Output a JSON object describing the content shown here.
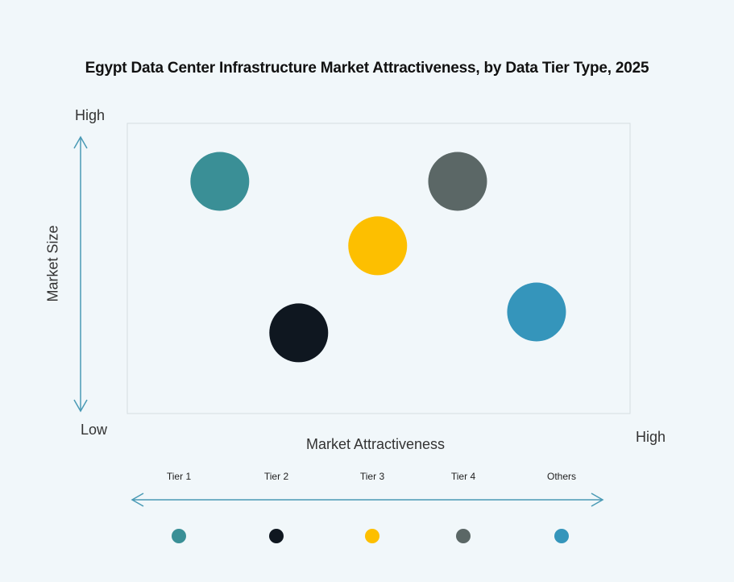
{
  "chart_data": {
    "type": "scatter",
    "title": "Egypt Data Center Infrastructure  Market Attractiveness,  by Data Tier Type, 2025",
    "xlabel": "Market Attractiveness",
    "ylabel": "Market Size",
    "x_ticks": {
      "low": "Low",
      "high": "High"
    },
    "y_ticks": {
      "low": "Low",
      "high": "High"
    },
    "xlim": [
      0,
      100
    ],
    "ylim": [
      0,
      100
    ],
    "grid": false,
    "legend_position": "bottom",
    "series": [
      {
        "name": "Tier 1",
        "x": 18.4,
        "y": 80,
        "color": "#3a8f96"
      },
      {
        "name": "Tier 2",
        "x": 34.1,
        "y": 27.8,
        "color": "#0f1720"
      },
      {
        "name": "Tier 3",
        "x": 49.8,
        "y": 57.8,
        "color": "#fdbf00"
      },
      {
        "name": "Tier 4",
        "x": 65.7,
        "y": 80,
        "color": "#5b6766"
      },
      {
        "name": "Others",
        "x": 81.4,
        "y": 35,
        "color": "#3595bb"
      }
    ],
    "axis_color": "#4a9ab5"
  }
}
